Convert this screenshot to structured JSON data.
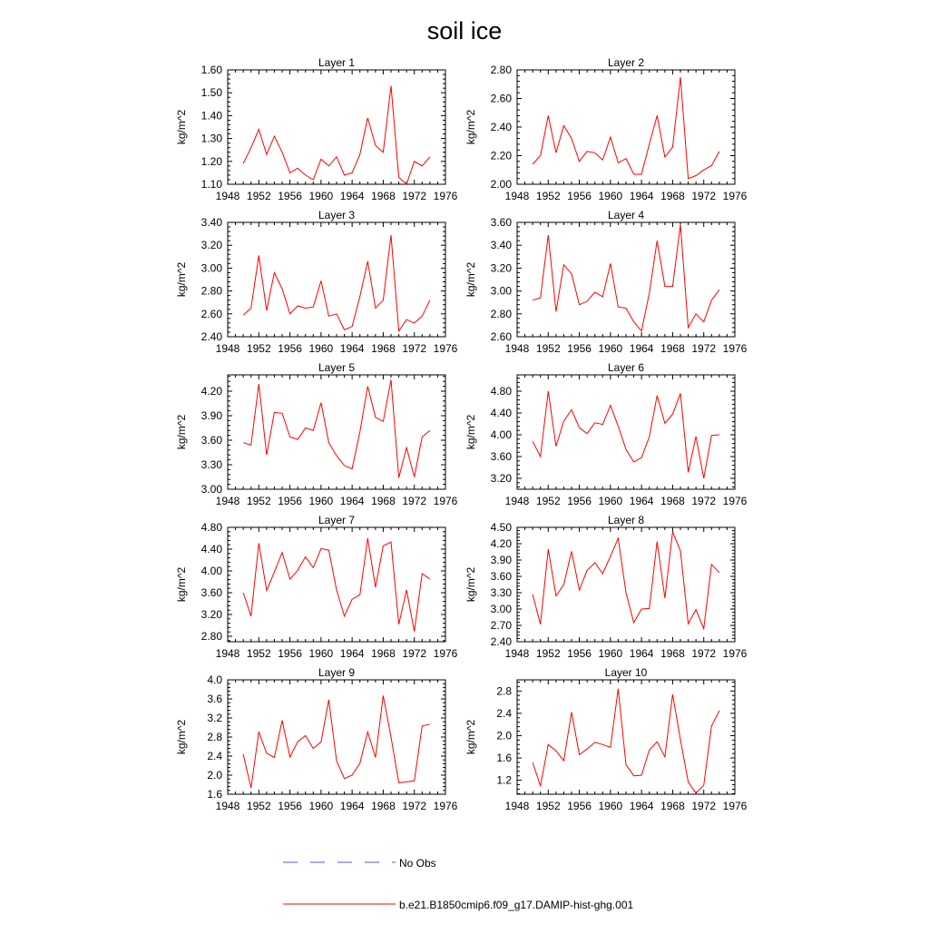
{
  "title": "soil ice",
  "colors": {
    "model": "#ff0000",
    "obs": "#4a5bd6",
    "axis": "#000000"
  },
  "legend": {
    "obs_label": "No Obs",
    "model_label": "b.e21.B1850cmip6.f09_g17.DAMIP-hist-ghg.001"
  },
  "chart_data": [
    {
      "type": "line",
      "title": "Layer 1",
      "ylabel": "kg/m^2",
      "xlabel": "",
      "xlim": [
        1948,
        1976
      ],
      "xticks": [
        "1948",
        "1952",
        "1956",
        "1960",
        "1964",
        "1968",
        "1972",
        "1976"
      ],
      "ylim": [
        1.1,
        1.6
      ],
      "yticks": [
        "1.10",
        "1.20",
        "1.30",
        "1.40",
        "1.50",
        "1.60"
      ],
      "x": [
        1950,
        1951,
        1952,
        1953,
        1954,
        1955,
        1956,
        1957,
        1958,
        1959,
        1960,
        1961,
        1962,
        1963,
        1964,
        1965,
        1966,
        1967,
        1968,
        1969,
        1970,
        1971,
        1972,
        1973,
        1974
      ],
      "series": [
        {
          "values": [
            1.19,
            1.26,
            1.34,
            1.23,
            1.31,
            1.24,
            1.15,
            1.17,
            1.14,
            1.12,
            1.21,
            1.18,
            1.22,
            1.14,
            1.15,
            1.23,
            1.39,
            1.27,
            1.24,
            1.53,
            1.13,
            1.1,
            1.2,
            1.18,
            1.22
          ]
        }
      ]
    },
    {
      "type": "line",
      "title": "Layer 2",
      "ylabel": "kg/m^2",
      "xlabel": "",
      "xlim": [
        1948,
        1976
      ],
      "xticks": [
        "1948",
        "1952",
        "1956",
        "1960",
        "1964",
        "1968",
        "1972",
        "1976"
      ],
      "ylim": [
        2.0,
        2.8
      ],
      "yticks": [
        "2.00",
        "2.20",
        "2.40",
        "2.60",
        "2.80"
      ],
      "x": [
        1950,
        1951,
        1952,
        1953,
        1954,
        1955,
        1956,
        1957,
        1958,
        1959,
        1960,
        1961,
        1962,
        1963,
        1964,
        1965,
        1966,
        1967,
        1968,
        1969,
        1970,
        1971,
        1972,
        1973,
        1974
      ],
      "series": [
        {
          "values": [
            2.14,
            2.2,
            2.48,
            2.22,
            2.41,
            2.32,
            2.16,
            2.23,
            2.22,
            2.17,
            2.33,
            2.15,
            2.18,
            2.07,
            2.07,
            2.28,
            2.48,
            2.19,
            2.26,
            2.75,
            2.04,
            2.06,
            2.1,
            2.13,
            2.23
          ]
        }
      ]
    },
    {
      "type": "line",
      "title": "Layer 3",
      "ylabel": "kg/m^2",
      "xlabel": "",
      "xlim": [
        1948,
        1976
      ],
      "xticks": [
        "1948",
        "1952",
        "1956",
        "1960",
        "1964",
        "1968",
        "1972",
        "1976"
      ],
      "ylim": [
        2.4,
        3.4
      ],
      "yticks": [
        "2.40",
        "2.60",
        "2.80",
        "3.00",
        "3.20",
        "3.40"
      ],
      "x": [
        1950,
        1951,
        1952,
        1953,
        1954,
        1955,
        1956,
        1957,
        1958,
        1959,
        1960,
        1961,
        1962,
        1963,
        1964,
        1965,
        1966,
        1967,
        1968,
        1969,
        1970,
        1971,
        1972,
        1973,
        1974
      ],
      "series": [
        {
          "values": [
            2.59,
            2.65,
            3.11,
            2.63,
            2.96,
            2.82,
            2.6,
            2.67,
            2.65,
            2.66,
            2.89,
            2.58,
            2.6,
            2.46,
            2.49,
            2.75,
            3.06,
            2.65,
            2.72,
            3.29,
            2.45,
            2.55,
            2.52,
            2.58,
            2.72
          ]
        }
      ]
    },
    {
      "type": "line",
      "title": "Layer 4",
      "ylabel": "kg/m^2",
      "xlabel": "",
      "xlim": [
        1948,
        1976
      ],
      "xticks": [
        "1948",
        "1952",
        "1956",
        "1960",
        "1964",
        "1968",
        "1972",
        "1976"
      ],
      "ylim": [
        2.6,
        3.6
      ],
      "yticks": [
        "2.60",
        "2.80",
        "3.00",
        "3.20",
        "3.40",
        "3.60"
      ],
      "x": [
        1950,
        1951,
        1952,
        1953,
        1954,
        1955,
        1956,
        1957,
        1958,
        1959,
        1960,
        1961,
        1962,
        1963,
        1964,
        1965,
        1966,
        1967,
        1968,
        1969,
        1970,
        1971,
        1972,
        1973,
        1974
      ],
      "series": [
        {
          "values": [
            2.92,
            2.94,
            3.49,
            2.82,
            3.23,
            3.15,
            2.88,
            2.91,
            2.99,
            2.95,
            3.24,
            2.86,
            2.85,
            2.73,
            2.65,
            2.98,
            3.44,
            3.04,
            3.04,
            3.58,
            2.68,
            2.8,
            2.73,
            2.92,
            3.01
          ]
        }
      ]
    },
    {
      "type": "line",
      "title": "Layer 5",
      "ylabel": "kg/m^2",
      "xlabel": "",
      "xlim": [
        1948,
        1976
      ],
      "xticks": [
        "1948",
        "1952",
        "1956",
        "1960",
        "1964",
        "1968",
        "1972",
        "1976"
      ],
      "ylim": [
        3.0,
        4.4
      ],
      "yticks": [
        "3.00",
        "3.30",
        "3.60",
        "3.90",
        "4.20"
      ],
      "x": [
        1950,
        1951,
        1952,
        1953,
        1954,
        1955,
        1956,
        1957,
        1958,
        1959,
        1960,
        1961,
        1962,
        1963,
        1964,
        1965,
        1966,
        1967,
        1968,
        1969,
        1970,
        1971,
        1972,
        1973,
        1974
      ],
      "series": [
        {
          "values": [
            3.57,
            3.54,
            4.29,
            3.42,
            3.94,
            3.93,
            3.64,
            3.61,
            3.75,
            3.72,
            4.06,
            3.57,
            3.41,
            3.29,
            3.25,
            3.7,
            4.26,
            3.88,
            3.83,
            4.34,
            3.14,
            3.51,
            3.15,
            3.64,
            3.72
          ]
        }
      ]
    },
    {
      "type": "line",
      "title": "Layer 6",
      "ylabel": "kg/m^2",
      "xlabel": "",
      "xlim": [
        1948,
        1976
      ],
      "xticks": [
        "1948",
        "1952",
        "1956",
        "1960",
        "1964",
        "1968",
        "1972",
        "1976"
      ],
      "ylim": [
        3.0,
        5.1
      ],
      "yticks": [
        "3.20",
        "3.60",
        "4.00",
        "4.40",
        "4.80"
      ],
      "x": [
        1950,
        1951,
        1952,
        1953,
        1954,
        1955,
        1956,
        1957,
        1958,
        1959,
        1960,
        1961,
        1962,
        1963,
        1964,
        1965,
        1966,
        1967,
        1968,
        1969,
        1970,
        1971,
        1972,
        1973,
        1974
      ],
      "series": [
        {
          "values": [
            3.88,
            3.6,
            4.8,
            3.79,
            4.25,
            4.46,
            4.13,
            4.02,
            4.22,
            4.19,
            4.54,
            4.16,
            3.73,
            3.5,
            3.58,
            3.96,
            4.72,
            4.21,
            4.38,
            4.76,
            3.31,
            3.97,
            3.2,
            3.99,
            4.0
          ]
        }
      ]
    },
    {
      "type": "line",
      "title": "Layer 7",
      "ylabel": "kg/m^2",
      "xlabel": "",
      "xlim": [
        1948,
        1976
      ],
      "xticks": [
        "1948",
        "1952",
        "1956",
        "1960",
        "1964",
        "1968",
        "1972",
        "1976"
      ],
      "ylim": [
        2.7,
        4.8
      ],
      "yticks": [
        "2.80",
        "3.20",
        "3.60",
        "4.00",
        "4.40",
        "4.80"
      ],
      "x": [
        1950,
        1951,
        1952,
        1953,
        1954,
        1955,
        1956,
        1957,
        1958,
        1959,
        1960,
        1961,
        1962,
        1963,
        1964,
        1965,
        1966,
        1967,
        1968,
        1969,
        1970,
        1971,
        1972,
        1973,
        1974
      ],
      "series": [
        {
          "values": [
            3.6,
            3.17,
            4.51,
            3.64,
            3.98,
            4.34,
            3.85,
            4.01,
            4.26,
            4.06,
            4.41,
            4.38,
            3.65,
            3.17,
            3.48,
            3.56,
            4.6,
            3.7,
            4.46,
            4.53,
            3.02,
            3.65,
            2.89,
            3.95,
            3.85
          ]
        }
      ]
    },
    {
      "type": "line",
      "title": "Layer 8",
      "ylabel": "kg/m^2",
      "xlabel": "",
      "xlim": [
        1948,
        1976
      ],
      "xticks": [
        "1948",
        "1952",
        "1956",
        "1960",
        "1964",
        "1968",
        "1972",
        "1976"
      ],
      "ylim": [
        2.4,
        4.5
      ],
      "yticks": [
        "2.40",
        "2.70",
        "3.00",
        "3.30",
        "3.60",
        "3.90",
        "4.20",
        "4.50"
      ],
      "x": [
        1950,
        1951,
        1952,
        1953,
        1954,
        1955,
        1956,
        1957,
        1958,
        1959,
        1960,
        1961,
        1962,
        1963,
        1964,
        1965,
        1966,
        1967,
        1968,
        1969,
        1970,
        1971,
        1972,
        1973,
        1974
      ],
      "series": [
        {
          "values": [
            3.27,
            2.72,
            4.1,
            3.24,
            3.45,
            4.06,
            3.35,
            3.71,
            3.85,
            3.65,
            3.97,
            4.3,
            3.3,
            2.75,
            3.0,
            3.01,
            4.24,
            3.2,
            4.42,
            4.07,
            2.73,
            2.99,
            2.64,
            3.82,
            3.67
          ]
        }
      ]
    },
    {
      "type": "line",
      "title": "Layer 9",
      "ylabel": "kg/m^2",
      "xlabel": "",
      "xlim": [
        1948,
        1976
      ],
      "xticks": [
        "1948",
        "1952",
        "1956",
        "1960",
        "1964",
        "1968",
        "1972",
        "1976"
      ],
      "ylim": [
        1.6,
        4.0
      ],
      "yticks": [
        "1.6",
        "2.0",
        "2.4",
        "2.8",
        "3.2",
        "3.6",
        "4.0"
      ],
      "x": [
        1950,
        1951,
        1952,
        1953,
        1954,
        1955,
        1956,
        1957,
        1958,
        1959,
        1960,
        1961,
        1962,
        1963,
        1964,
        1965,
        1966,
        1967,
        1968,
        1969,
        1970,
        1971,
        1972,
        1973,
        1974
      ],
      "series": [
        {
          "values": [
            2.44,
            1.73,
            2.91,
            2.46,
            2.37,
            3.15,
            2.38,
            2.7,
            2.83,
            2.56,
            2.7,
            3.58,
            2.3,
            1.93,
            2.0,
            2.25,
            2.91,
            2.37,
            3.67,
            2.8,
            1.84,
            1.86,
            1.88,
            3.03,
            3.07
          ]
        }
      ]
    },
    {
      "type": "line",
      "title": "Layer 10",
      "ylabel": "kg/m^2",
      "xlabel": "",
      "xlim": [
        1948,
        1976
      ],
      "xticks": [
        "1948",
        "1952",
        "1956",
        "1960",
        "1964",
        "1968",
        "1972",
        "1976"
      ],
      "ylim": [
        0.95,
        3.0
      ],
      "yticks": [
        "1.2",
        "1.6",
        "2.0",
        "2.4",
        "2.8"
      ],
      "x": [
        1950,
        1951,
        1952,
        1953,
        1954,
        1955,
        1956,
        1957,
        1958,
        1959,
        1960,
        1961,
        1962,
        1963,
        1964,
        1965,
        1966,
        1967,
        1968,
        1969,
        1970,
        1971,
        1972,
        1973,
        1974
      ],
      "series": [
        {
          "values": [
            1.52,
            1.1,
            1.84,
            1.73,
            1.55,
            2.42,
            1.66,
            1.76,
            1.88,
            1.84,
            1.79,
            2.84,
            1.48,
            1.28,
            1.29,
            1.74,
            1.89,
            1.62,
            2.74,
            1.93,
            1.17,
            0.97,
            1.11,
            2.17,
            2.45
          ]
        }
      ]
    }
  ]
}
